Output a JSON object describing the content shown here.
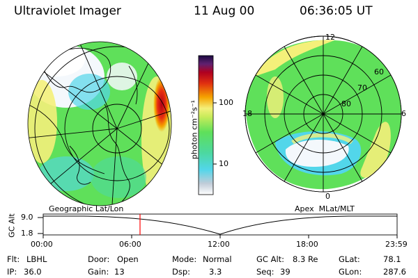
{
  "header": {
    "instrument": "Ultraviolet Imager",
    "date": "11 Aug 00",
    "time": "06:36:05 UT"
  },
  "colorbar": {
    "unit_label": "photon cm⁻²s⁻¹",
    "ticks": [
      "100",
      "10"
    ]
  },
  "left_map": {
    "caption": "Geographic Lat/Lon"
  },
  "right_map": {
    "caption": "Apex  MLat/MLT",
    "mlt_labels": {
      "top": "12",
      "left": "18",
      "right": "6",
      "bottom": "0"
    },
    "mlat_labels": [
      "60",
      "70",
      "80"
    ]
  },
  "timeline": {
    "axis_title": "GC Alt",
    "y_ticks": [
      "9.0",
      "1.8"
    ],
    "x_ticks": [
      "00:00",
      "06:00",
      "12:00",
      "18:00",
      "23:59"
    ],
    "marker_time_utc": "06:36:05"
  },
  "status": {
    "filter_label": "Flt:",
    "filter_value": "LBHL",
    "ip_label": "IP:",
    "ip_value": "36.0",
    "door_label": "Door:",
    "door_value": "Open",
    "gain_label": "Gain:",
    "gain_value": "13",
    "mode_label": "Mode:",
    "mode_value": "Normal",
    "dsp_label": "Dsp:",
    "dsp_value": "3.3",
    "gcalt_label": "GC Alt:",
    "gcalt_value": "8.3 Re",
    "seq_label": "Seq:",
    "seq_value": "39",
    "glat_label": "GLat:",
    "glat_value": "78.1",
    "glon_label": "GLon:",
    "glon_value": "287.6"
  },
  "colors": {
    "green": "#5fe05a",
    "yellow": "#f4f07a",
    "cyan": "#52d6ea",
    "white": "#f4f8fc",
    "orange": "#f5a400",
    "red": "#c80018",
    "marker": "#ff0000"
  }
}
